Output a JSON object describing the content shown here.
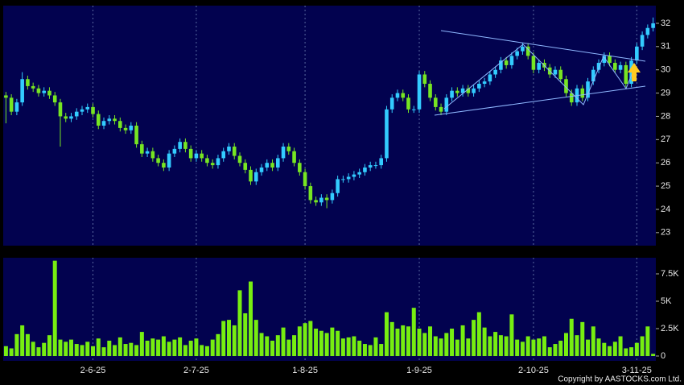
{
  "chart_data": [
    {
      "type": "candlestick",
      "up_color": "#33ccff",
      "down_color": "#77e622",
      "ylim": [
        22.44,
        32.76
      ],
      "yticks": [
        23,
        24,
        25,
        26,
        27,
        28,
        29,
        30,
        31,
        32
      ],
      "open": [
        28.9,
        28.8,
        28.2,
        28.6,
        29.6,
        29.3,
        29.2,
        29.0,
        29.1,
        28.9,
        28.6,
        28.0,
        27.9,
        28.0,
        28.2,
        28.3,
        28.4,
        28.1,
        27.6,
        27.8,
        27.9,
        27.8,
        27.5,
        27.4,
        27.6,
        26.8,
        26.4,
        26.5,
        26.2,
        26.0,
        25.8,
        26.4,
        26.6,
        26.9,
        26.6,
        26.2,
        26.4,
        26.2,
        26.0,
        25.9,
        26.2,
        26.5,
        26.7,
        26.3,
        26.0,
        25.7,
        25.2,
        25.6,
        25.8,
        26.0,
        25.8,
        26.2,
        26.7,
        26.5,
        26.0,
        25.6,
        25.0,
        24.4,
        24.3,
        24.5,
        24.4,
        24.7,
        25.3,
        25.3,
        25.4,
        25.5,
        25.6,
        25.8,
        25.9,
        25.9,
        26.2,
        28.3,
        28.8,
        29.0,
        28.8,
        28.3,
        28.3,
        29.8,
        29.4,
        28.8,
        28.4,
        28.2,
        28.8,
        29.1,
        29.0,
        29.2,
        29.0,
        29.2,
        29.4,
        29.5,
        29.8,
        30.0,
        30.4,
        30.2,
        30.6,
        30.8,
        31.0,
        30.6,
        30.0,
        30.3,
        30.1,
        29.8,
        30.0,
        29.6,
        29.0,
        28.6,
        29.2,
        28.8,
        29.5,
        30.0,
        30.3,
        30.6,
        30.3,
        30.0,
        30.2,
        29.4,
        30.4,
        31.0,
        31.5,
        31.8
      ],
      "high": [
        29.05,
        28.95,
        28.75,
        29.9,
        29.75,
        29.45,
        29.35,
        29.25,
        29.25,
        29.05,
        28.75,
        28.15,
        28.15,
        28.35,
        28.45,
        28.55,
        28.55,
        28.25,
        27.95,
        28.05,
        28.05,
        27.95,
        27.65,
        27.75,
        27.75,
        26.95,
        26.65,
        26.65,
        26.35,
        26.15,
        26.55,
        26.75,
        27.05,
        27.05,
        26.75,
        26.55,
        26.55,
        26.35,
        26.15,
        26.35,
        26.65,
        26.85,
        26.85,
        26.45,
        26.15,
        25.85,
        25.75,
        25.95,
        26.15,
        26.15,
        26.35,
        26.85,
        26.85,
        26.65,
        26.15,
        25.75,
        25.15,
        24.55,
        24.65,
        24.65,
        24.85,
        25.45,
        25.45,
        25.55,
        25.65,
        25.75,
        25.95,
        26.05,
        26.05,
        26.35,
        28.45,
        28.95,
        29.15,
        29.15,
        28.95,
        28.45,
        29.95,
        29.95,
        29.55,
        28.95,
        28.55,
        28.95,
        29.25,
        29.25,
        29.35,
        29.35,
        29.35,
        29.55,
        29.65,
        29.95,
        30.15,
        30.55,
        30.55,
        30.75,
        30.95,
        31.15,
        31.15,
        30.75,
        30.45,
        30.45,
        30.25,
        30.15,
        30.15,
        29.75,
        29.15,
        29.35,
        29.35,
        29.65,
        30.15,
        30.45,
        30.75,
        30.75,
        30.45,
        30.35,
        30.35,
        30.55,
        31.15,
        31.65,
        31.95,
        32.25
      ],
      "low": [
        27.7,
        28.05,
        28.05,
        28.45,
        29.15,
        29.05,
        28.85,
        28.85,
        28.75,
        28.45,
        26.7,
        27.75,
        27.75,
        27.85,
        28.05,
        28.15,
        27.95,
        27.45,
        27.45,
        27.65,
        27.65,
        27.35,
        27.25,
        27.25,
        26.65,
        26.25,
        26.25,
        26.05,
        25.85,
        25.65,
        25.65,
        26.25,
        26.45,
        26.45,
        26.05,
        26.05,
        26.05,
        25.85,
        25.75,
        25.75,
        26.05,
        26.35,
        26.15,
        25.85,
        25.55,
        25.05,
        25.05,
        25.45,
        25.65,
        25.65,
        25.65,
        26.05,
        26.35,
        25.85,
        25.45,
        24.85,
        24.25,
        24.15,
        24.15,
        24.05,
        24.25,
        24.55,
        25.15,
        25.15,
        25.25,
        25.35,
        25.45,
        25.65,
        25.75,
        25.75,
        26.05,
        28.15,
        28.65,
        28.65,
        28.15,
        28.15,
        28.15,
        29.25,
        28.65,
        28.25,
        28.05,
        28.05,
        28.65,
        28.85,
        28.85,
        28.85,
        28.85,
        29.05,
        29.25,
        29.35,
        29.65,
        29.85,
        30.05,
        30.05,
        30.45,
        30.65,
        30.45,
        29.85,
        29.85,
        29.95,
        29.65,
        29.65,
        29.45,
        28.85,
        28.45,
        28.45,
        28.65,
        28.65,
        29.35,
        29.85,
        30.15,
        30.15,
        29.85,
        29.85,
        29.25,
        29.25,
        30.25,
        30.85,
        31.35,
        31.65
      ],
      "close": [
        28.8,
        28.2,
        28.6,
        29.6,
        29.3,
        29.2,
        29.0,
        29.1,
        28.9,
        28.6,
        28.0,
        27.9,
        28.0,
        28.2,
        28.3,
        28.4,
        28.1,
        27.6,
        27.8,
        27.9,
        27.8,
        27.5,
        27.4,
        27.6,
        26.8,
        26.4,
        26.5,
        26.2,
        26.0,
        25.8,
        26.4,
        26.6,
        26.9,
        26.6,
        26.2,
        26.4,
        26.2,
        26.0,
        25.9,
        26.2,
        26.5,
        26.7,
        26.3,
        26.0,
        25.7,
        25.2,
        25.6,
        25.8,
        26.0,
        25.8,
        26.2,
        26.7,
        26.5,
        26.0,
        25.6,
        25.0,
        24.4,
        24.3,
        24.5,
        24.4,
        24.7,
        25.3,
        25.3,
        25.4,
        25.5,
        25.6,
        25.8,
        25.9,
        25.9,
        26.2,
        28.3,
        28.8,
        29.0,
        28.8,
        28.3,
        28.3,
        29.8,
        29.4,
        28.8,
        28.4,
        28.2,
        28.8,
        29.1,
        29.0,
        29.2,
        29.0,
        29.2,
        29.4,
        29.5,
        29.8,
        30.0,
        30.4,
        30.2,
        30.6,
        30.8,
        31.0,
        30.6,
        30.0,
        30.3,
        30.1,
        29.8,
        30.0,
        29.6,
        29.0,
        28.6,
        29.2,
        28.8,
        29.5,
        30.0,
        30.3,
        30.6,
        30.3,
        30.0,
        30.2,
        29.4,
        30.4,
        31.0,
        31.5,
        31.8,
        32.0
      ]
    },
    {
      "type": "bar",
      "color": "#77ee11",
      "ylim": [
        -440,
        8970
      ],
      "yticks": [
        0,
        {
          "value": 2500,
          "label": "2.5K"
        },
        {
          "value": 5000,
          "label": "5K"
        },
        {
          "value": 7500,
          "label": "7.5K"
        }
      ],
      "categories": [
        null,
        null,
        null,
        null,
        null,
        null,
        null,
        null,
        null,
        null,
        null,
        null,
        null,
        null,
        null,
        null,
        "2-6-25",
        null,
        null,
        null,
        null,
        null,
        null,
        null,
        null,
        null,
        null,
        null,
        null,
        null,
        null,
        null,
        null,
        null,
        null,
        "2-7-25",
        null,
        null,
        null,
        null,
        null,
        null,
        null,
        null,
        null,
        null,
        null,
        null,
        null,
        null,
        null,
        null,
        null,
        null,
        null,
        "1-8-25",
        null,
        null,
        null,
        null,
        null,
        null,
        null,
        null,
        null,
        null,
        null,
        null,
        null,
        null,
        null,
        null,
        null,
        null,
        null,
        null,
        "1-9-25",
        null,
        null,
        null,
        null,
        null,
        null,
        null,
        null,
        null,
        null,
        null,
        null,
        null,
        null,
        null,
        null,
        null,
        null,
        null,
        null,
        "2-10-25",
        null,
        null,
        null,
        null,
        null,
        null,
        null,
        null,
        null,
        null,
        null,
        null,
        null,
        null,
        null,
        null,
        null,
        null,
        "3-11-25",
        null,
        null,
        null
      ],
      "values": [
        900,
        700,
        2000,
        2800,
        2000,
        1300,
        800,
        1200,
        1900,
        8700,
        1500,
        1300,
        1500,
        1100,
        1000,
        1300,
        900,
        1600,
        800,
        1400,
        1000,
        1700,
        1100,
        1200,
        1000,
        2200,
        1400,
        1600,
        1500,
        1800,
        1300,
        1500,
        1700,
        1000,
        1400,
        1600,
        1000,
        900,
        1500,
        2000,
        3200,
        3300,
        2800,
        6000,
        3900,
        6800,
        3300,
        2100,
        1800,
        1400,
        1900,
        2600,
        1500,
        1900,
        2700,
        3000,
        3200,
        2500,
        2300,
        2100,
        2600,
        2300,
        1600,
        1700,
        1800,
        1400,
        1100,
        1000,
        1700,
        1100,
        4000,
        3100,
        2500,
        2800,
        2700,
        4400,
        2500,
        2100,
        2700,
        1800,
        1600,
        2100,
        2500,
        1500,
        2800,
        1600,
        3300,
        4000,
        2600,
        1800,
        2200,
        1900,
        1800,
        3800,
        1500,
        1300,
        1800,
        1500,
        1600,
        1800,
        800,
        1100,
        1400,
        2100,
        3400,
        1900,
        3100,
        1500,
        2700,
        1600,
        1200,
        900,
        1300,
        1800,
        700,
        800,
        1200,
        1800,
        2700,
        200
      ]
    }
  ],
  "copyright": "Copyright by AASTOCKS.com Ltd."
}
